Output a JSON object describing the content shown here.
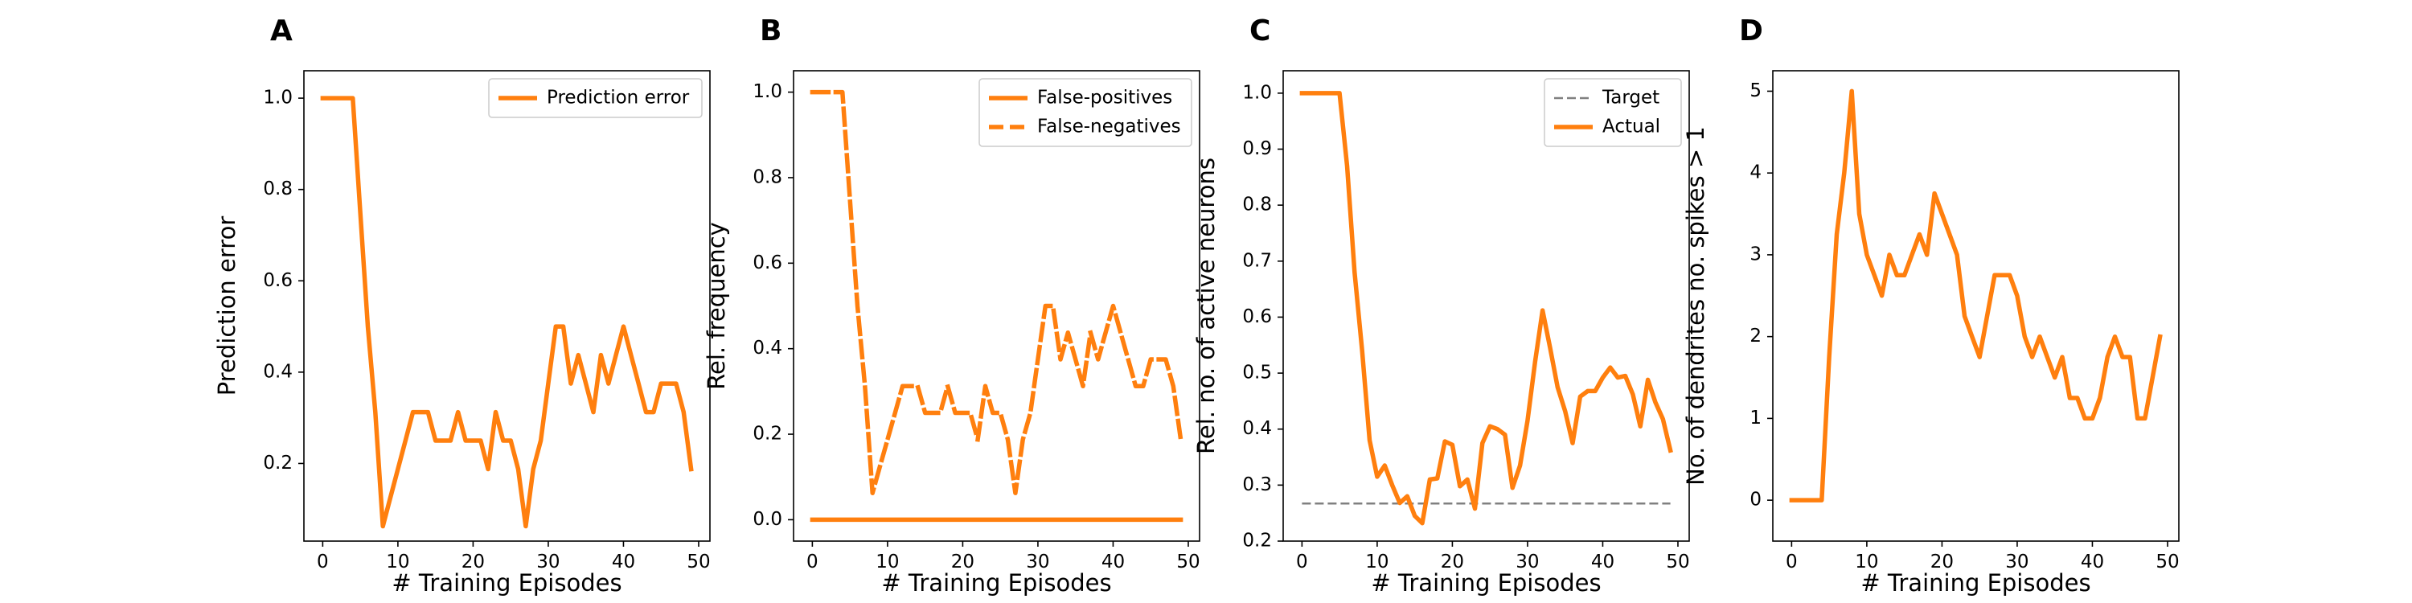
{
  "chart_data": [
    {
      "type": "line",
      "panel_label": "A",
      "xlabel": "# Training Episodes",
      "ylabel": "Prediction error",
      "xlim": [
        -2.5,
        51.5
      ],
      "ylim": [
        0.03,
        1.06
      ],
      "xticks": [
        0,
        10,
        20,
        30,
        40,
        50
      ],
      "yticks": [
        0.2,
        0.4,
        0.6,
        0.8,
        1.0
      ],
      "ytick_labels": [
        "0.2",
        "0.4",
        "0.6",
        "0.8",
        "1.0"
      ],
      "legend_position": "upper right",
      "color": "#ff7f0e",
      "grid": false,
      "series": [
        {
          "name": "Prediction error",
          "style": "solid",
          "x": [
            0,
            1,
            2,
            3,
            4,
            5,
            6,
            7,
            8,
            9,
            10,
            11,
            12,
            13,
            14,
            15,
            16,
            17,
            18,
            19,
            20,
            21,
            22,
            23,
            24,
            25,
            26,
            27,
            28,
            29,
            30,
            31,
            32,
            33,
            34,
            35,
            36,
            37,
            38,
            39,
            40,
            41,
            42,
            43,
            44,
            45,
            46,
            47,
            48,
            49
          ],
          "y": [
            1.0,
            1.0,
            1.0,
            1.0,
            1.0,
            0.75,
            0.5,
            0.3125,
            0.0625,
            0.125,
            0.1875,
            0.25,
            0.3125,
            0.3125,
            0.3125,
            0.25,
            0.25,
            0.25,
            0.3125,
            0.25,
            0.25,
            0.25,
            0.1875,
            0.3125,
            0.25,
            0.25,
            0.1875,
            0.0625,
            0.1875,
            0.25,
            0.375,
            0.5,
            0.5,
            0.375,
            0.4375,
            0.375,
            0.3125,
            0.4375,
            0.375,
            0.4375,
            0.5,
            0.4375,
            0.375,
            0.3125,
            0.3125,
            0.375,
            0.375,
            0.375,
            0.3125,
            0.1875
          ]
        }
      ]
    },
    {
      "type": "line",
      "panel_label": "B",
      "xlabel": "# Training Episodes",
      "ylabel": "Rel. frequency",
      "xlim": [
        -2.5,
        51.5
      ],
      "ylim": [
        -0.05,
        1.05
      ],
      "xticks": [
        0,
        10,
        20,
        30,
        40,
        50
      ],
      "yticks": [
        0.0,
        0.2,
        0.4,
        0.6,
        0.8,
        1.0
      ],
      "ytick_labels": [
        "0.0",
        "0.2",
        "0.4",
        "0.6",
        "0.8",
        "1.0"
      ],
      "legend_position": "upper right",
      "color": "#ff7f0e",
      "grid": false,
      "series": [
        {
          "name": "False-positives",
          "style": "solid",
          "x": [
            0,
            49
          ],
          "y": [
            0.0,
            0.0
          ]
        },
        {
          "name": "False-negatives",
          "style": "dashed",
          "x": [
            0,
            1,
            2,
            3,
            4,
            5,
            6,
            7,
            8,
            9,
            10,
            11,
            12,
            13,
            14,
            15,
            16,
            17,
            18,
            19,
            20,
            21,
            22,
            23,
            24,
            25,
            26,
            27,
            28,
            29,
            30,
            31,
            32,
            33,
            34,
            35,
            36,
            37,
            38,
            39,
            40,
            41,
            42,
            43,
            44,
            45,
            46,
            47,
            48,
            49
          ],
          "y": [
            1.0,
            1.0,
            1.0,
            1.0,
            1.0,
            0.75,
            0.5,
            0.3125,
            0.0625,
            0.125,
            0.1875,
            0.25,
            0.3125,
            0.3125,
            0.3125,
            0.25,
            0.25,
            0.25,
            0.3125,
            0.25,
            0.25,
            0.25,
            0.1875,
            0.3125,
            0.25,
            0.25,
            0.1875,
            0.0625,
            0.1875,
            0.25,
            0.375,
            0.5,
            0.5,
            0.375,
            0.4375,
            0.375,
            0.3125,
            0.4375,
            0.375,
            0.4375,
            0.5,
            0.4375,
            0.375,
            0.3125,
            0.3125,
            0.375,
            0.375,
            0.375,
            0.3125,
            0.1875
          ]
        }
      ]
    },
    {
      "type": "line",
      "panel_label": "C",
      "xlabel": "# Training Episodes",
      "ylabel": "Rel. no. of active neurons",
      "xlim": [
        -2.5,
        51.5
      ],
      "ylim": [
        0.2,
        1.04
      ],
      "xticks": [
        0,
        10,
        20,
        30,
        40,
        50
      ],
      "yticks": [
        0.2,
        0.3,
        0.4,
        0.5,
        0.6,
        0.7,
        0.8,
        0.9,
        1.0
      ],
      "ytick_labels": [
        "0.2",
        "0.3",
        "0.4",
        "0.5",
        "0.6",
        "0.7",
        "0.8",
        "0.9",
        "1.0"
      ],
      "legend_position": "upper right",
      "colors": {
        "Target": "#808080",
        "Actual": "#ff7f0e"
      },
      "grid": false,
      "series": [
        {
          "name": "Target",
          "style": "dashed",
          "x": [
            0,
            49
          ],
          "y": [
            0.267,
            0.267
          ]
        },
        {
          "name": "Actual",
          "style": "solid",
          "x": [
            0,
            1,
            2,
            3,
            4,
            5,
            6,
            7,
            8,
            9,
            10,
            11,
            12,
            13,
            14,
            15,
            16,
            17,
            18,
            19,
            20,
            21,
            22,
            23,
            24,
            25,
            26,
            27,
            28,
            29,
            30,
            31,
            32,
            33,
            34,
            35,
            36,
            37,
            38,
            39,
            40,
            41,
            42,
            43,
            44,
            45,
            46,
            47,
            48,
            49
          ],
          "y": [
            1.0,
            1.0,
            1.0,
            1.0,
            1.0,
            1.0,
            0.87,
            0.68,
            0.54,
            0.38,
            0.315,
            0.335,
            0.3,
            0.268,
            0.28,
            0.245,
            0.232,
            0.31,
            0.312,
            0.378,
            0.372,
            0.298,
            0.31,
            0.258,
            0.375,
            0.405,
            0.4,
            0.39,
            0.295,
            0.335,
            0.415,
            0.52,
            0.612,
            0.545,
            0.475,
            0.432,
            0.375,
            0.458,
            0.468,
            0.468,
            0.492,
            0.51,
            0.492,
            0.495,
            0.462,
            0.405,
            0.488,
            0.448,
            0.418,
            0.362
          ]
        }
      ]
    },
    {
      "type": "line",
      "panel_label": "D",
      "xlabel": "# Training Episodes",
      "ylabel": "No. of dendrites no. spikes > 1",
      "xlim": [
        -2.5,
        51.5
      ],
      "ylim": [
        -0.5,
        5.25
      ],
      "xticks": [
        0,
        10,
        20,
        30,
        40,
        50
      ],
      "yticks": [
        0,
        1,
        2,
        3,
        4,
        5
      ],
      "ytick_labels": [
        "0",
        "1",
        "2",
        "3",
        "4",
        "5"
      ],
      "legend_position": "",
      "color": "#ff7f0e",
      "grid": false,
      "series": [
        {
          "name": "",
          "style": "solid",
          "x": [
            0,
            1,
            2,
            3,
            4,
            5,
            6,
            7,
            8,
            9,
            10,
            11,
            12,
            13,
            14,
            15,
            16,
            17,
            18,
            19,
            20,
            21,
            22,
            23,
            24,
            25,
            26,
            27,
            28,
            29,
            30,
            31,
            32,
            33,
            34,
            35,
            36,
            37,
            38,
            39,
            40,
            41,
            42,
            43,
            44,
            45,
            46,
            47,
            48,
            49
          ],
          "y": [
            0,
            0,
            0,
            0,
            0,
            1.75,
            3.25,
            4.0,
            5.0,
            3.5,
            3.0,
            2.75,
            2.5,
            3.0,
            2.75,
            2.75,
            3.0,
            3.25,
            3.0,
            3.75,
            3.5,
            3.25,
            3.0,
            2.25,
            2.0,
            1.75,
            2.25,
            2.75,
            2.75,
            2.75,
            2.5,
            2.0,
            1.75,
            2.0,
            1.75,
            1.5,
            1.75,
            1.25,
            1.25,
            1.0,
            1.0,
            1.25,
            1.75,
            2.0,
            1.75,
            1.75,
            1.0,
            1.0,
            1.5,
            2.0
          ]
        }
      ]
    }
  ]
}
